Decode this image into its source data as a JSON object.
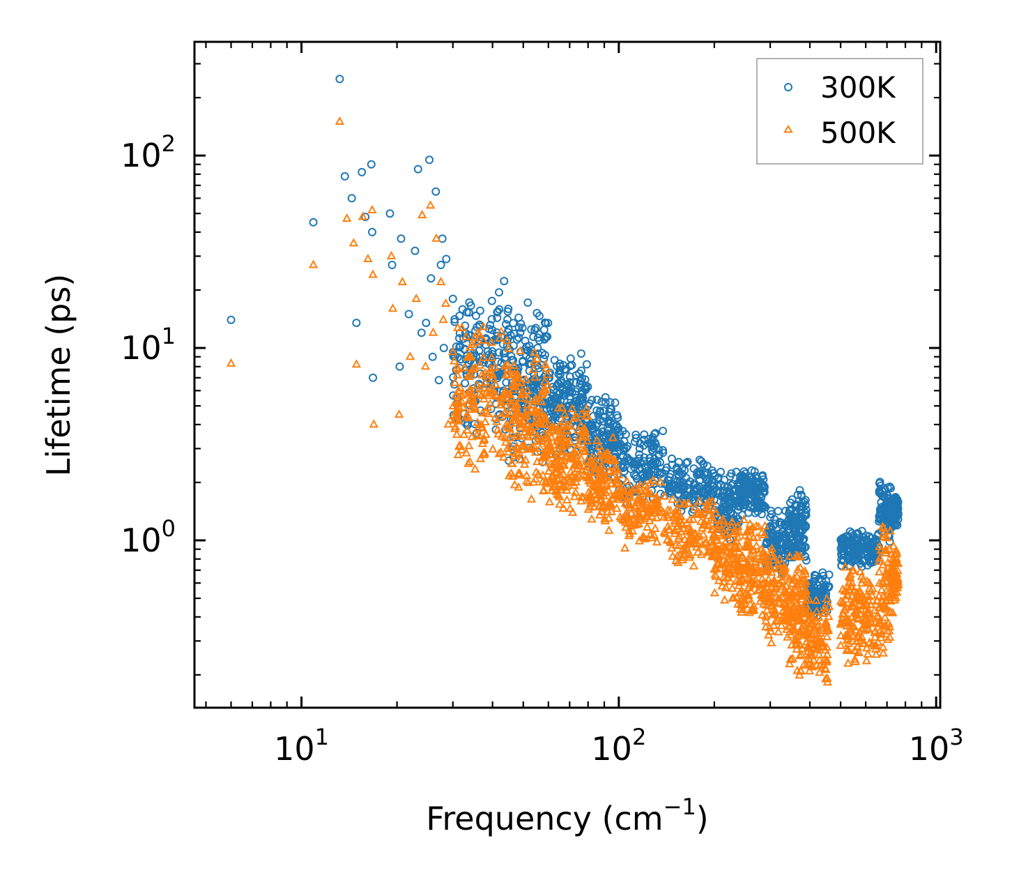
{
  "chart_data": {
    "type": "scatter",
    "title": "",
    "xlabel": "Frequency (cm",
    "xlabel_sup": "−1",
    "xlabel_close": ")",
    "ylabel": "Lifetime (ps)",
    "xscale": "log",
    "yscale": "log",
    "xlim": [
      4.6,
      1030
    ],
    "ylim": [
      0.135,
      390
    ],
    "x_ticks": [
      {
        "value": 10,
        "base": "10",
        "exp": "1"
      },
      {
        "value": 100,
        "base": "10",
        "exp": "2"
      },
      {
        "value": 1000,
        "base": "10",
        "exp": "3"
      }
    ],
    "y_ticks": [
      {
        "value": 1,
        "base": "10",
        "exp": "0"
      },
      {
        "value": 10,
        "base": "10",
        "exp": "1"
      },
      {
        "value": 100,
        "base": "10",
        "exp": "2"
      }
    ],
    "legend_position": "top-right",
    "series": [
      {
        "name": "300K",
        "color": "#1f77b4",
        "marker": "circle",
        "outliers": [
          [
            6.0,
            14.0
          ],
          [
            10.9,
            45.0
          ],
          [
            13.2,
            250.0
          ],
          [
            13.7,
            78.0
          ],
          [
            14.4,
            60.0
          ],
          [
            14.9,
            13.5
          ],
          [
            15.5,
            82.0
          ],
          [
            15.9,
            48.0
          ],
          [
            16.6,
            90.0
          ],
          [
            16.7,
            40.0
          ],
          [
            16.8,
            7.0
          ],
          [
            19.0,
            50.0
          ],
          [
            19.3,
            27.0
          ],
          [
            20.4,
            8.0
          ],
          [
            20.6,
            37.0
          ],
          [
            21.8,
            15.0
          ],
          [
            22.8,
            32.0
          ],
          [
            23.3,
            85.0
          ],
          [
            23.9,
            12.0
          ],
          [
            24.7,
            13.5
          ],
          [
            25.3,
            95.0
          ],
          [
            25.6,
            23.0
          ],
          [
            25.9,
            9.0
          ],
          [
            26.5,
            65.0
          ],
          [
            27.1,
            6.8
          ],
          [
            27.5,
            27.0
          ],
          [
            27.8,
            37.0
          ],
          [
            28.1,
            10.0
          ],
          [
            28.6,
            29.0
          ],
          [
            30.0,
            18.0
          ]
        ],
        "bands": [
          {
            "xmin": 30,
            "xmax": 45,
            "count": 170,
            "ylo": 3.2,
            "yhi": 24
          },
          {
            "xmin": 45,
            "xmax": 60,
            "count": 170,
            "ylo": 2.4,
            "yhi": 18
          },
          {
            "xmin": 60,
            "xmax": 80,
            "count": 170,
            "ylo": 2.6,
            "yhi": 10
          },
          {
            "xmin": 80,
            "xmax": 100,
            "count": 130,
            "ylo": 2.0,
            "yhi": 6
          },
          {
            "xmin": 100,
            "xmax": 140,
            "count": 130,
            "ylo": 1.5,
            "yhi": 4
          },
          {
            "xmin": 140,
            "xmax": 200,
            "count": 130,
            "ylo": 1.3,
            "yhi": 2.7
          },
          {
            "xmin": 200,
            "xmax": 240,
            "count": 110,
            "ylo": 0.95,
            "yhi": 2.4
          },
          {
            "xmin": 240,
            "xmax": 290,
            "count": 130,
            "ylo": 1.3,
            "yhi": 2.4
          },
          {
            "xmin": 290,
            "xmax": 345,
            "count": 110,
            "ylo": 0.65,
            "yhi": 1.5
          },
          {
            "xmin": 345,
            "xmax": 390,
            "count": 110,
            "ylo": 0.75,
            "yhi": 1.9
          },
          {
            "xmin": 390,
            "xmax": 460,
            "count": 90,
            "ylo": 0.38,
            "yhi": 0.72
          },
          {
            "xmin": 500,
            "xmax": 660,
            "count": 170,
            "ylo": 0.7,
            "yhi": 1.15
          },
          {
            "xmin": 660,
            "xmax": 720,
            "count": 70,
            "ylo": 0.95,
            "yhi": 2.2
          },
          {
            "xmin": 720,
            "xmax": 760,
            "count": 70,
            "ylo": 1.1,
            "yhi": 1.8
          }
        ]
      },
      {
        "name": "500K",
        "color": "#ff7f0e",
        "marker": "triangle",
        "outliers": [
          [
            6.0,
            8.3
          ],
          [
            10.9,
            27.0
          ],
          [
            13.2,
            150.0
          ],
          [
            13.9,
            47.0
          ],
          [
            14.6,
            35.0
          ],
          [
            14.9,
            8.2
          ],
          [
            15.6,
            48.0
          ],
          [
            16.2,
            29.0
          ],
          [
            16.7,
            52.0
          ],
          [
            16.8,
            24.0
          ],
          [
            16.9,
            4.0
          ],
          [
            19.2,
            30.0
          ],
          [
            19.4,
            16.0
          ],
          [
            20.3,
            4.5
          ],
          [
            20.8,
            22.0
          ],
          [
            22.0,
            9.0
          ],
          [
            23.0,
            18.0
          ],
          [
            24.0,
            49.0
          ],
          [
            24.6,
            8.0
          ],
          [
            25.5,
            55.0
          ],
          [
            26.0,
            12.0
          ],
          [
            26.6,
            37.0
          ],
          [
            27.5,
            22.0
          ],
          [
            28.0,
            14.0
          ],
          [
            28.5,
            17.0
          ],
          [
            29.0,
            4.0
          ]
        ],
        "bands": [
          {
            "xmin": 30,
            "xmax": 45,
            "count": 170,
            "ylo": 2.1,
            "yhi": 14
          },
          {
            "xmin": 45,
            "xmax": 60,
            "count": 170,
            "ylo": 1.6,
            "yhi": 10
          },
          {
            "xmin": 60,
            "xmax": 80,
            "count": 170,
            "ylo": 1.3,
            "yhi": 5.5
          },
          {
            "xmin": 80,
            "xmax": 100,
            "count": 130,
            "ylo": 1.1,
            "yhi": 3.5
          },
          {
            "xmin": 100,
            "xmax": 140,
            "count": 130,
            "ylo": 0.85,
            "yhi": 2.2
          },
          {
            "xmin": 140,
            "xmax": 200,
            "count": 130,
            "ylo": 0.72,
            "yhi": 1.7
          },
          {
            "xmin": 200,
            "xmax": 240,
            "count": 110,
            "ylo": 0.45,
            "yhi": 1.4
          },
          {
            "xmin": 240,
            "xmax": 290,
            "count": 130,
            "ylo": 0.35,
            "yhi": 1.4
          },
          {
            "xmin": 290,
            "xmax": 345,
            "count": 110,
            "ylo": 0.27,
            "yhi": 0.95
          },
          {
            "xmin": 345,
            "xmax": 390,
            "count": 110,
            "ylo": 0.18,
            "yhi": 0.95
          },
          {
            "xmin": 390,
            "xmax": 460,
            "count": 100,
            "ylo": 0.17,
            "yhi": 0.55
          },
          {
            "xmin": 500,
            "xmax": 660,
            "count": 170,
            "ylo": 0.2,
            "yhi": 0.8
          },
          {
            "xmin": 660,
            "xmax": 720,
            "count": 70,
            "ylo": 0.23,
            "yhi": 1.3
          },
          {
            "xmin": 720,
            "xmax": 760,
            "count": 70,
            "ylo": 0.4,
            "yhi": 1.0
          }
        ]
      }
    ]
  }
}
